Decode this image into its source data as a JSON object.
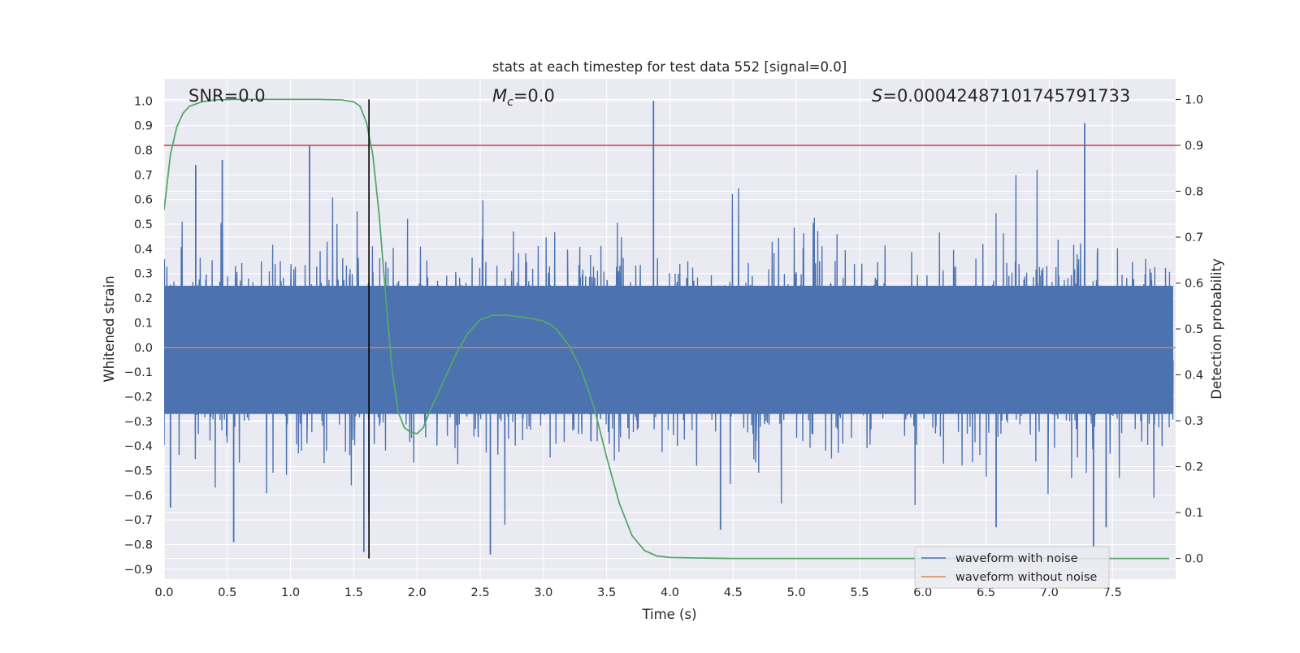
{
  "chart_data": {
    "type": "line",
    "title": "stats at each timestep for test data 552 [signal=0.0]",
    "xlabel": "Time (s)",
    "ylabel_left": "Whitened strain",
    "ylabel_right": "Detection probability",
    "xlim": [
      0.0,
      8.0
    ],
    "ylim_left": [
      -0.94,
      1.09
    ],
    "ylim_right": [
      -0.045,
      1.045
    ],
    "x_ticks": [
      "0.0",
      "0.5",
      "1.0",
      "1.5",
      "2.0",
      "2.5",
      "3.0",
      "3.5",
      "4.0",
      "4.5",
      "5.0",
      "5.5",
      "6.0",
      "6.5",
      "7.0",
      "7.5"
    ],
    "y_ticks_left": [
      "1.0",
      "0.9",
      "0.8",
      "0.7",
      "0.6",
      "0.5",
      "0.4",
      "0.3",
      "0.2",
      "0.1",
      "0.0",
      "−0.1",
      "−0.2",
      "−0.3",
      "−0.4",
      "−0.5",
      "−0.6",
      "−0.7",
      "−0.8",
      "−0.9"
    ],
    "y_ticks_right": [
      "1.0",
      "0.9",
      "0.8",
      "0.7",
      "0.6",
      "0.5",
      "0.4",
      "0.3",
      "0.2",
      "0.1",
      "0.0"
    ],
    "grid": true,
    "legend_position": "bottom-right",
    "annotations": {
      "snr": "SNR=0.0",
      "mc_symbol": "M",
      "mc_sub": "c",
      "mc_value": "=0.0",
      "s_symbol": "S",
      "s_value": "=0.00042487101745791733"
    },
    "series": [
      {
        "name": "waveform with noise",
        "color": "#4c72b0",
        "description_peaks": [
          {
            "x": 0.05,
            "y": -0.65
          },
          {
            "x": 0.25,
            "y": 0.74
          },
          {
            "x": 0.46,
            "y": 0.76
          },
          {
            "x": 0.55,
            "y": -0.79
          },
          {
            "x": 1.15,
            "y": 0.82
          },
          {
            "x": 1.58,
            "y": -0.83
          },
          {
            "x": 1.62,
            "y": -0.67
          },
          {
            "x": 2.58,
            "y": -0.84
          },
          {
            "x": 3.87,
            "y": 1.0
          },
          {
            "x": 4.4,
            "y": -0.74
          },
          {
            "x": 6.58,
            "y": -0.73
          },
          {
            "x": 7.28,
            "y": 0.91
          },
          {
            "x": 7.35,
            "y": -0.81
          },
          {
            "x": 7.45,
            "y": -0.73
          }
        ],
        "envelope_typical": [
          -0.45,
          0.45
        ]
      },
      {
        "name": "waveform without noise",
        "color": "#dd8452",
        "constant_y": 0.0
      },
      {
        "name": "detection probability",
        "color": "#55a868",
        "axis": "right",
        "x": [
          0.0,
          0.05,
          0.1,
          0.15,
          0.2,
          0.3,
          0.4,
          0.6,
          0.8,
          1.0,
          1.2,
          1.4,
          1.5,
          1.55,
          1.6,
          1.65,
          1.7,
          1.75,
          1.8,
          1.85,
          1.9,
          1.95,
          2.0,
          2.05,
          2.1,
          2.2,
          2.3,
          2.4,
          2.5,
          2.6,
          2.7,
          2.8,
          2.9,
          3.0,
          3.05,
          3.1,
          3.2,
          3.3,
          3.4,
          3.5,
          3.6,
          3.7,
          3.8,
          3.9,
          4.0,
          4.2,
          4.5,
          5.0,
          6.0,
          7.0,
          7.95
        ],
        "y": [
          0.76,
          0.88,
          0.94,
          0.97,
          0.985,
          0.995,
          0.999,
          1.0,
          1.0,
          1.0,
          1.0,
          0.999,
          0.995,
          0.985,
          0.95,
          0.88,
          0.75,
          0.58,
          0.42,
          0.32,
          0.285,
          0.275,
          0.272,
          0.285,
          0.32,
          0.38,
          0.44,
          0.49,
          0.52,
          0.53,
          0.53,
          0.527,
          0.523,
          0.517,
          0.51,
          0.5,
          0.465,
          0.41,
          0.33,
          0.22,
          0.12,
          0.05,
          0.017,
          0.005,
          0.002,
          0.001,
          0.0,
          0.0,
          0.0,
          0.0,
          0.0
        ]
      }
    ],
    "horizontal_lines": [
      {
        "axis": "right",
        "y": 0.9,
        "color": "#c44e52"
      }
    ],
    "vertical_lines": [
      {
        "x": 1.62,
        "color": "#000000",
        "axis": "right",
        "y_range": [
          0.0,
          1.0
        ]
      }
    ]
  }
}
